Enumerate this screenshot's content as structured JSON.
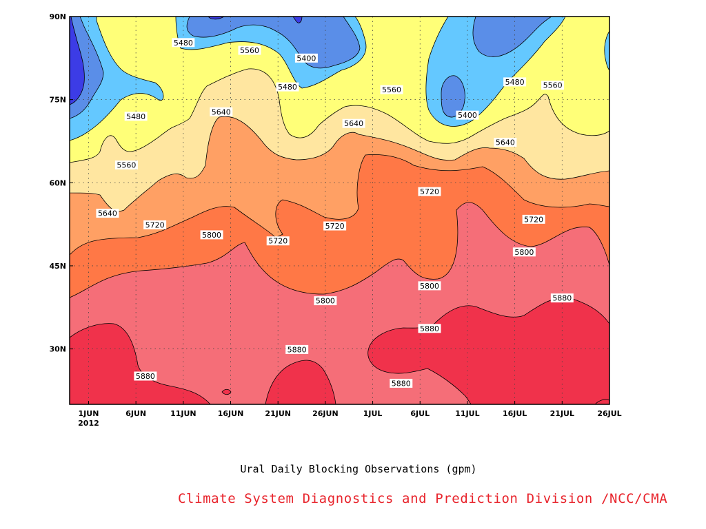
{
  "chart_data": {
    "type": "heatmap",
    "title": "",
    "xlabel": "",
    "ylabel": "",
    "x_axis": {
      "ticks": [
        {
          "label": "1JUN",
          "date": "2012-06-01"
        },
        {
          "label": "6JUN",
          "date": "2012-06-06"
        },
        {
          "label": "11JUN",
          "date": "2012-06-11"
        },
        {
          "label": "16JUN",
          "date": "2012-06-16"
        },
        {
          "label": "21JUN",
          "date": "2012-06-21"
        },
        {
          "label": "26JUN",
          "date": "2012-06-26"
        },
        {
          "label": "1JUL",
          "date": "2012-07-01"
        },
        {
          "label": "6JUL",
          "date": "2012-07-06"
        },
        {
          "label": "11JUL",
          "date": "2012-07-11"
        },
        {
          "label": "16JUL",
          "date": "2012-07-16"
        },
        {
          "label": "21JUL",
          "date": "2012-07-21"
        },
        {
          "label": "26JUL",
          "date": "2012-07-26"
        }
      ],
      "year_label": "2012",
      "range": [
        "2012-05-30",
        "2012-07-26"
      ]
    },
    "y_axis": {
      "ticks": [
        "30N",
        "45N",
        "60N",
        "75N",
        "90N"
      ],
      "values": [
        30,
        45,
        60,
        75,
        90
      ],
      "range": [
        20,
        90
      ]
    },
    "grid": true,
    "contour_levels": [
      5400,
      5480,
      5560,
      5640,
      5720,
      5800,
      5880
    ],
    "band_colors": [
      "#3c3ce6",
      "#5a8ee8",
      "#64c8ff",
      "#ffff78",
      "#ffe6a0",
      "#ffa064",
      "#ff7846",
      "#f56e78",
      "#f0324b"
    ],
    "contour_labels": [
      {
        "text": "5480",
        "date": "2012-06-11",
        "lat": 85.3
      },
      {
        "text": "5560",
        "date": "2012-06-18",
        "lat": 83.9
      },
      {
        "text": "5400",
        "date": "2012-06-24",
        "lat": 82.5
      },
      {
        "text": "5480",
        "date": "2012-06-22",
        "lat": 77.3
      },
      {
        "text": "5560",
        "date": "2012-07-03",
        "lat": 76.8
      },
      {
        "text": "5480",
        "date": "2012-07-16",
        "lat": 78.2
      },
      {
        "text": "5560",
        "date": "2012-07-20",
        "lat": 77.6
      },
      {
        "text": "5400",
        "date": "2012-07-11",
        "lat": 72.2
      },
      {
        "text": "5480",
        "date": "2012-06-06",
        "lat": 72.0
      },
      {
        "text": "5640",
        "date": "2012-06-15",
        "lat": 72.8
      },
      {
        "text": "5640",
        "date": "2012-06-29",
        "lat": 70.7
      },
      {
        "text": "5640",
        "date": "2012-07-15",
        "lat": 67.3
      },
      {
        "text": "5560",
        "date": "2012-06-05",
        "lat": 63.2
      },
      {
        "text": "5720",
        "date": "2012-07-07",
        "lat": 58.4
      },
      {
        "text": "5640",
        "date": "2012-06-03",
        "lat": 54.5
      },
      {
        "text": "5720",
        "date": "2012-06-08",
        "lat": 52.4
      },
      {
        "text": "5720",
        "date": "2012-06-27",
        "lat": 52.2
      },
      {
        "text": "5720",
        "date": "2012-07-18",
        "lat": 53.4
      },
      {
        "text": "5800",
        "date": "2012-06-14",
        "lat": 50.6
      },
      {
        "text": "5720",
        "date": "2012-06-21",
        "lat": 49.5
      },
      {
        "text": "5800",
        "date": "2012-07-17",
        "lat": 47.5
      },
      {
        "text": "5800",
        "date": "2012-07-07",
        "lat": 41.4
      },
      {
        "text": "5800",
        "date": "2012-06-26",
        "lat": 38.7
      },
      {
        "text": "5880",
        "date": "2012-07-21",
        "lat": 39.2
      },
      {
        "text": "5880",
        "date": "2012-07-07",
        "lat": 33.7
      },
      {
        "text": "5880",
        "date": "2012-06-23",
        "lat": 29.9
      },
      {
        "text": "5880",
        "date": "2012-06-07",
        "lat": 25.1
      },
      {
        "text": "5880",
        "date": "2012-07-04",
        "lat": 23.8
      }
    ]
  },
  "footer": {
    "subtitle": "Ural Daily Blocking Observations (gpm)",
    "credit": "Climate System Diagnostics and Prediction Division /NCC/CMA"
  }
}
